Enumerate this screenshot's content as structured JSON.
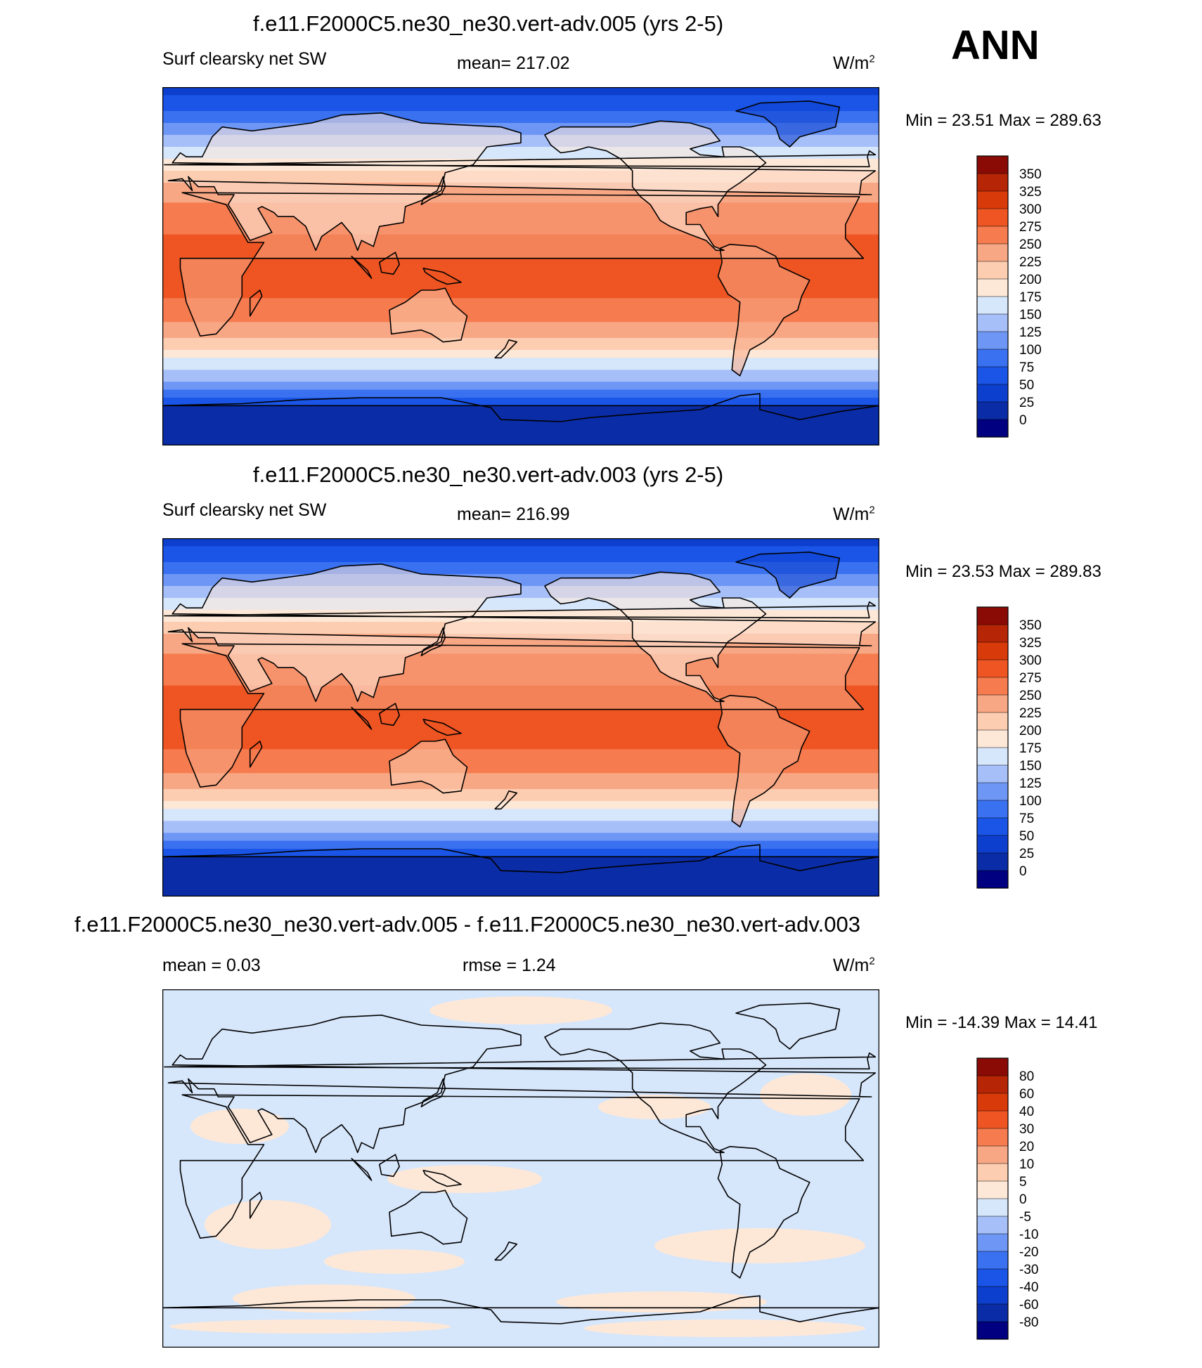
{
  "season": "ANN",
  "colors": {
    "abs_scale": [
      "#000080",
      "#0A2CA6",
      "#0D3FCE",
      "#1A55E8",
      "#3A71F0",
      "#6E97F5",
      "#A6BFF8",
      "#D6E6FB",
      "#FDE8D8",
      "#FCCDB1",
      "#F8A785",
      "#F67B4F",
      "#EE5522",
      "#D83A0A",
      "#B52506",
      "#8A0A05"
    ],
    "diff_scale": [
      "#000080",
      "#0A2CA6",
      "#0D3FCE",
      "#1A55E8",
      "#3A71F0",
      "#6E97F5",
      "#A6BFF8",
      "#D6E6FB",
      "#FDE8D8",
      "#FCCDB1",
      "#F8A785",
      "#F67B4F",
      "#EE5522",
      "#D83A0A",
      "#B52506",
      "#8A0A05"
    ]
  },
  "panels": [
    {
      "title": "f.e11.F2000C5.ne30_ne30.vert-adv.005 (yrs 2-5)",
      "left_label": "Surf clearsky net SW",
      "center_label": "mean= 217.02",
      "units": "W/m",
      "units_exp": "2",
      "minmax": "Min =  23.51 Max = 289.63"
    },
    {
      "title": "f.e11.F2000C5.ne30_ne30.vert-adv.003 (yrs 2-5)",
      "left_label": "Surf clearsky net SW",
      "center_label": "mean= 216.99",
      "units": "W/m",
      "units_exp": "2",
      "minmax": "Min =  23.53 Max = 289.83"
    },
    {
      "title": "f.e11.F2000C5.ne30_ne30.vert-adv.005 - f.e11.F2000C5.ne30_ne30.vert-adv.003",
      "left_label": "mean =   0.03",
      "center_label": "rmse =   1.24",
      "units": "W/m",
      "units_exp": "2",
      "minmax": "Min = -14.39 Max =  14.41"
    }
  ],
  "chart_data": [
    {
      "type": "heatmap",
      "title": "f.e11.F2000C5.ne30_ne30.vert-adv.005 (yrs 2-5)",
      "variable": "Surf clearsky net SW",
      "units": "W/m2",
      "mean": 217.02,
      "min": 23.51,
      "max": 289.63,
      "colorbar_levels": [
        350,
        325,
        300,
        275,
        250,
        225,
        200,
        175,
        150,
        125,
        100,
        75,
        50,
        25,
        0
      ],
      "zonal_profile_from_colors": [
        {
          "lat": 90,
          "value": 40
        },
        {
          "lat": 80,
          "value": 60
        },
        {
          "lat": 70,
          "value": 110
        },
        {
          "lat": 60,
          "value": 150
        },
        {
          "lat": 50,
          "value": 190
        },
        {
          "lat": 40,
          "value": 230
        },
        {
          "lat": 30,
          "value": 255
        },
        {
          "lat": 20,
          "value": 270
        },
        {
          "lat": 10,
          "value": 280
        },
        {
          "lat": 0,
          "value": 285
        },
        {
          "lat": -10,
          "value": 283
        },
        {
          "lat": -20,
          "value": 270
        },
        {
          "lat": -30,
          "value": 245
        },
        {
          "lat": -40,
          "value": 205
        },
        {
          "lat": -50,
          "value": 160
        },
        {
          "lat": -60,
          "value": 110
        },
        {
          "lat": -70,
          "value": 55
        },
        {
          "lat": -80,
          "value": 35
        },
        {
          "lat": -90,
          "value": 30
        }
      ]
    },
    {
      "type": "heatmap",
      "title": "f.e11.F2000C5.ne30_ne30.vert-adv.003 (yrs 2-5)",
      "variable": "Surf clearsky net SW",
      "units": "W/m2",
      "mean": 216.99,
      "min": 23.53,
      "max": 289.83,
      "colorbar_levels": [
        350,
        325,
        300,
        275,
        250,
        225,
        200,
        175,
        150,
        125,
        100,
        75,
        50,
        25,
        0
      ],
      "zonal_profile_from_colors": [
        {
          "lat": 90,
          "value": 40
        },
        {
          "lat": 80,
          "value": 60
        },
        {
          "lat": 70,
          "value": 110
        },
        {
          "lat": 60,
          "value": 150
        },
        {
          "lat": 50,
          "value": 190
        },
        {
          "lat": 40,
          "value": 230
        },
        {
          "lat": 30,
          "value": 255
        },
        {
          "lat": 20,
          "value": 270
        },
        {
          "lat": 10,
          "value": 280
        },
        {
          "lat": 0,
          "value": 285
        },
        {
          "lat": -10,
          "value": 283
        },
        {
          "lat": -20,
          "value": 270
        },
        {
          "lat": -30,
          "value": 245
        },
        {
          "lat": -40,
          "value": 205
        },
        {
          "lat": -50,
          "value": 160
        },
        {
          "lat": -60,
          "value": 110
        },
        {
          "lat": -70,
          "value": 55
        },
        {
          "lat": -80,
          "value": 35
        },
        {
          "lat": -90,
          "value": 30
        }
      ]
    },
    {
      "type": "heatmap",
      "title": "f.e11.F2000C5.ne30_ne30.vert-adv.005 - f.e11.F2000C5.ne30_ne30.vert-adv.003",
      "units": "W/m2",
      "mean": 0.03,
      "rmse": 1.24,
      "min": -14.39,
      "max": 14.41,
      "colorbar_levels": [
        80,
        60,
        40,
        30,
        20,
        10,
        5,
        0,
        -5,
        -10,
        -20,
        -30,
        -40,
        -60,
        -80
      ]
    }
  ]
}
